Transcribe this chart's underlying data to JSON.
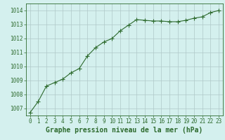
{
  "x": [
    0,
    1,
    2,
    3,
    4,
    5,
    6,
    7,
    8,
    9,
    10,
    11,
    12,
    13,
    14,
    15,
    16,
    17,
    18,
    19,
    20,
    21,
    22,
    23
  ],
  "y": [
    1006.7,
    1007.5,
    1008.6,
    1008.85,
    1009.1,
    1009.55,
    1009.85,
    1010.75,
    1011.35,
    1011.75,
    1012.0,
    1012.55,
    1012.95,
    1013.35,
    1013.3,
    1013.25,
    1013.25,
    1013.2,
    1013.2,
    1013.3,
    1013.45,
    1013.55,
    1013.85,
    1014.0
  ],
  "line_color": "#2d6a2d",
  "marker": "+",
  "marker_size": 4,
  "bg_color": "#d4f0ee",
  "grid_color": "#b0c8c8",
  "ylim": [
    1006.5,
    1014.5
  ],
  "yticks": [
    1007,
    1008,
    1009,
    1010,
    1011,
    1012,
    1013,
    1014
  ],
  "xticks": [
    0,
    1,
    2,
    3,
    4,
    5,
    6,
    7,
    8,
    9,
    10,
    11,
    12,
    13,
    14,
    15,
    16,
    17,
    18,
    19,
    20,
    21,
    22,
    23
  ],
  "xlabel": "Graphe pression niveau de la mer (hPa)",
  "xlabel_color": "#2d6a2d",
  "tick_color": "#2d6a2d",
  "axis_color": "#2d6a2d",
  "tick_fontsize": 5.5,
  "xlabel_fontsize": 7
}
